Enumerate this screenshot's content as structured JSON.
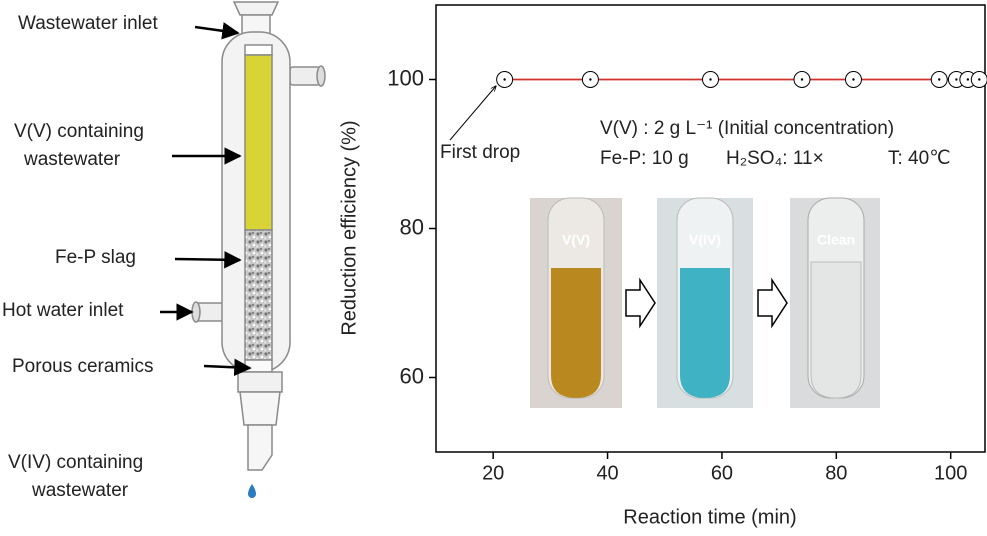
{
  "chart_data": {
    "type": "line",
    "x_label": "Reaction time (min)",
    "y_label": "Reduction efficiency (%)",
    "x": [
      22,
      37,
      58,
      74,
      83,
      98,
      101,
      103,
      105
    ],
    "series": [
      {
        "name": "Reduction efficiency",
        "color": "#d0312d",
        "values": [
          100,
          100,
          100,
          100,
          100,
          100,
          100,
          100,
          100
        ]
      }
    ],
    "xlim": [
      10,
      106
    ],
    "xticks": [
      20,
      40,
      60,
      80,
      100
    ],
    "ylim": [
      50,
      110
    ],
    "yticks": [
      60,
      80,
      100
    ],
    "annotations": [
      "First drop",
      "V(V) : 2 g L⁻¹ (Initial concentration)",
      "Fe-P: 10 g",
      "H₂SO₄: 11×",
      "T: 40℃"
    ],
    "photo_labels": [
      "V(V)",
      "V(IV)",
      "Clean"
    ]
  },
  "diagram": {
    "labels": [
      "Wastewater inlet",
      [
        "V(V) containing",
        "wastewater"
      ],
      "Fe-P slag",
      "Hot water inlet",
      "Porous ceramics",
      [
        "V(IV) containing",
        "wastewater"
      ]
    ]
  }
}
